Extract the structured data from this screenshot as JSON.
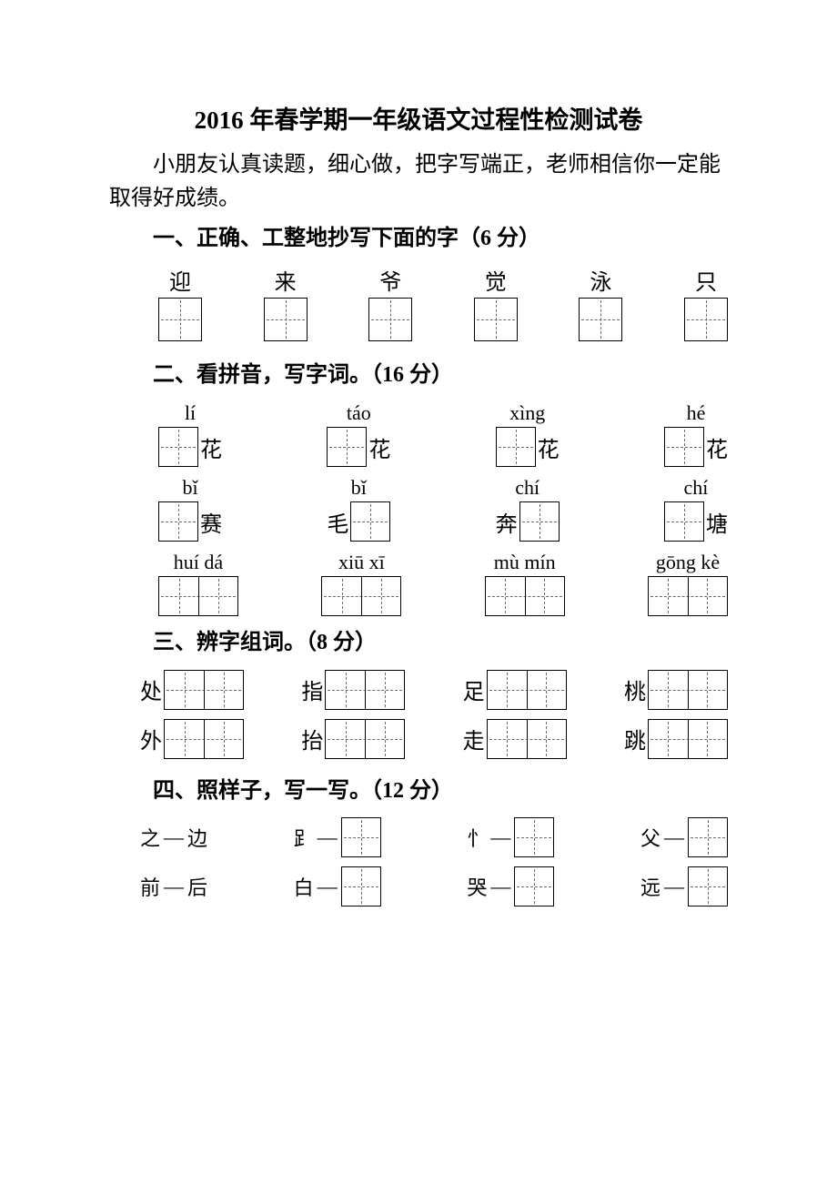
{
  "title": "2016 年春学期一年级语文过程性检测试卷",
  "intro": "小朋友认真读题，细心做，把字写端正，老师相信你一定能取得好成绩。",
  "sections": {
    "s1": {
      "head": "一、正确、工整地抄写下面的字（6 分）",
      "chars": [
        "迎",
        "来",
        "爷",
        "觉",
        "泳",
        "只"
      ]
    },
    "s2": {
      "head": "二、看拼音，写字词。（16 分）",
      "row1": [
        {
          "py": "lí",
          "suffix": "花"
        },
        {
          "py": "táo",
          "suffix": "花"
        },
        {
          "py": "xìng",
          "suffix": "花"
        },
        {
          "py": "hé",
          "suffix": "花"
        }
      ],
      "row2": [
        {
          "py": "bǐ",
          "suffix": "赛"
        },
        {
          "py": "bǐ",
          "prefix": "毛"
        },
        {
          "py": "chí",
          "prefix": "奔"
        },
        {
          "py": "chí",
          "suffix": "塘"
        }
      ],
      "row3": [
        {
          "py": "huí  dá"
        },
        {
          "py": "xiū  xī"
        },
        {
          "py": "mù  mín"
        },
        {
          "py": "gōng  kè"
        }
      ]
    },
    "s3": {
      "head": "三、辨字组词。（8 分）",
      "row1": [
        "处",
        "指",
        "足",
        "桃"
      ],
      "row2": [
        "外",
        "抬",
        "走",
        "跳"
      ]
    },
    "s4": {
      "head": "四、照样子，写一写。（12 分）",
      "row1": [
        {
          "lead": "之",
          "plain": "边"
        },
        {
          "lead": "𧾷"
        },
        {
          "lead": "忄"
        },
        {
          "lead": "父"
        }
      ],
      "row2": [
        {
          "lead": "前",
          "plain": "后"
        },
        {
          "lead": "白"
        },
        {
          "lead": "哭"
        },
        {
          "lead": "远"
        }
      ]
    }
  },
  "colors": {
    "text": "#000000",
    "bg": "#ffffff",
    "guide": "#6b6b6b"
  }
}
